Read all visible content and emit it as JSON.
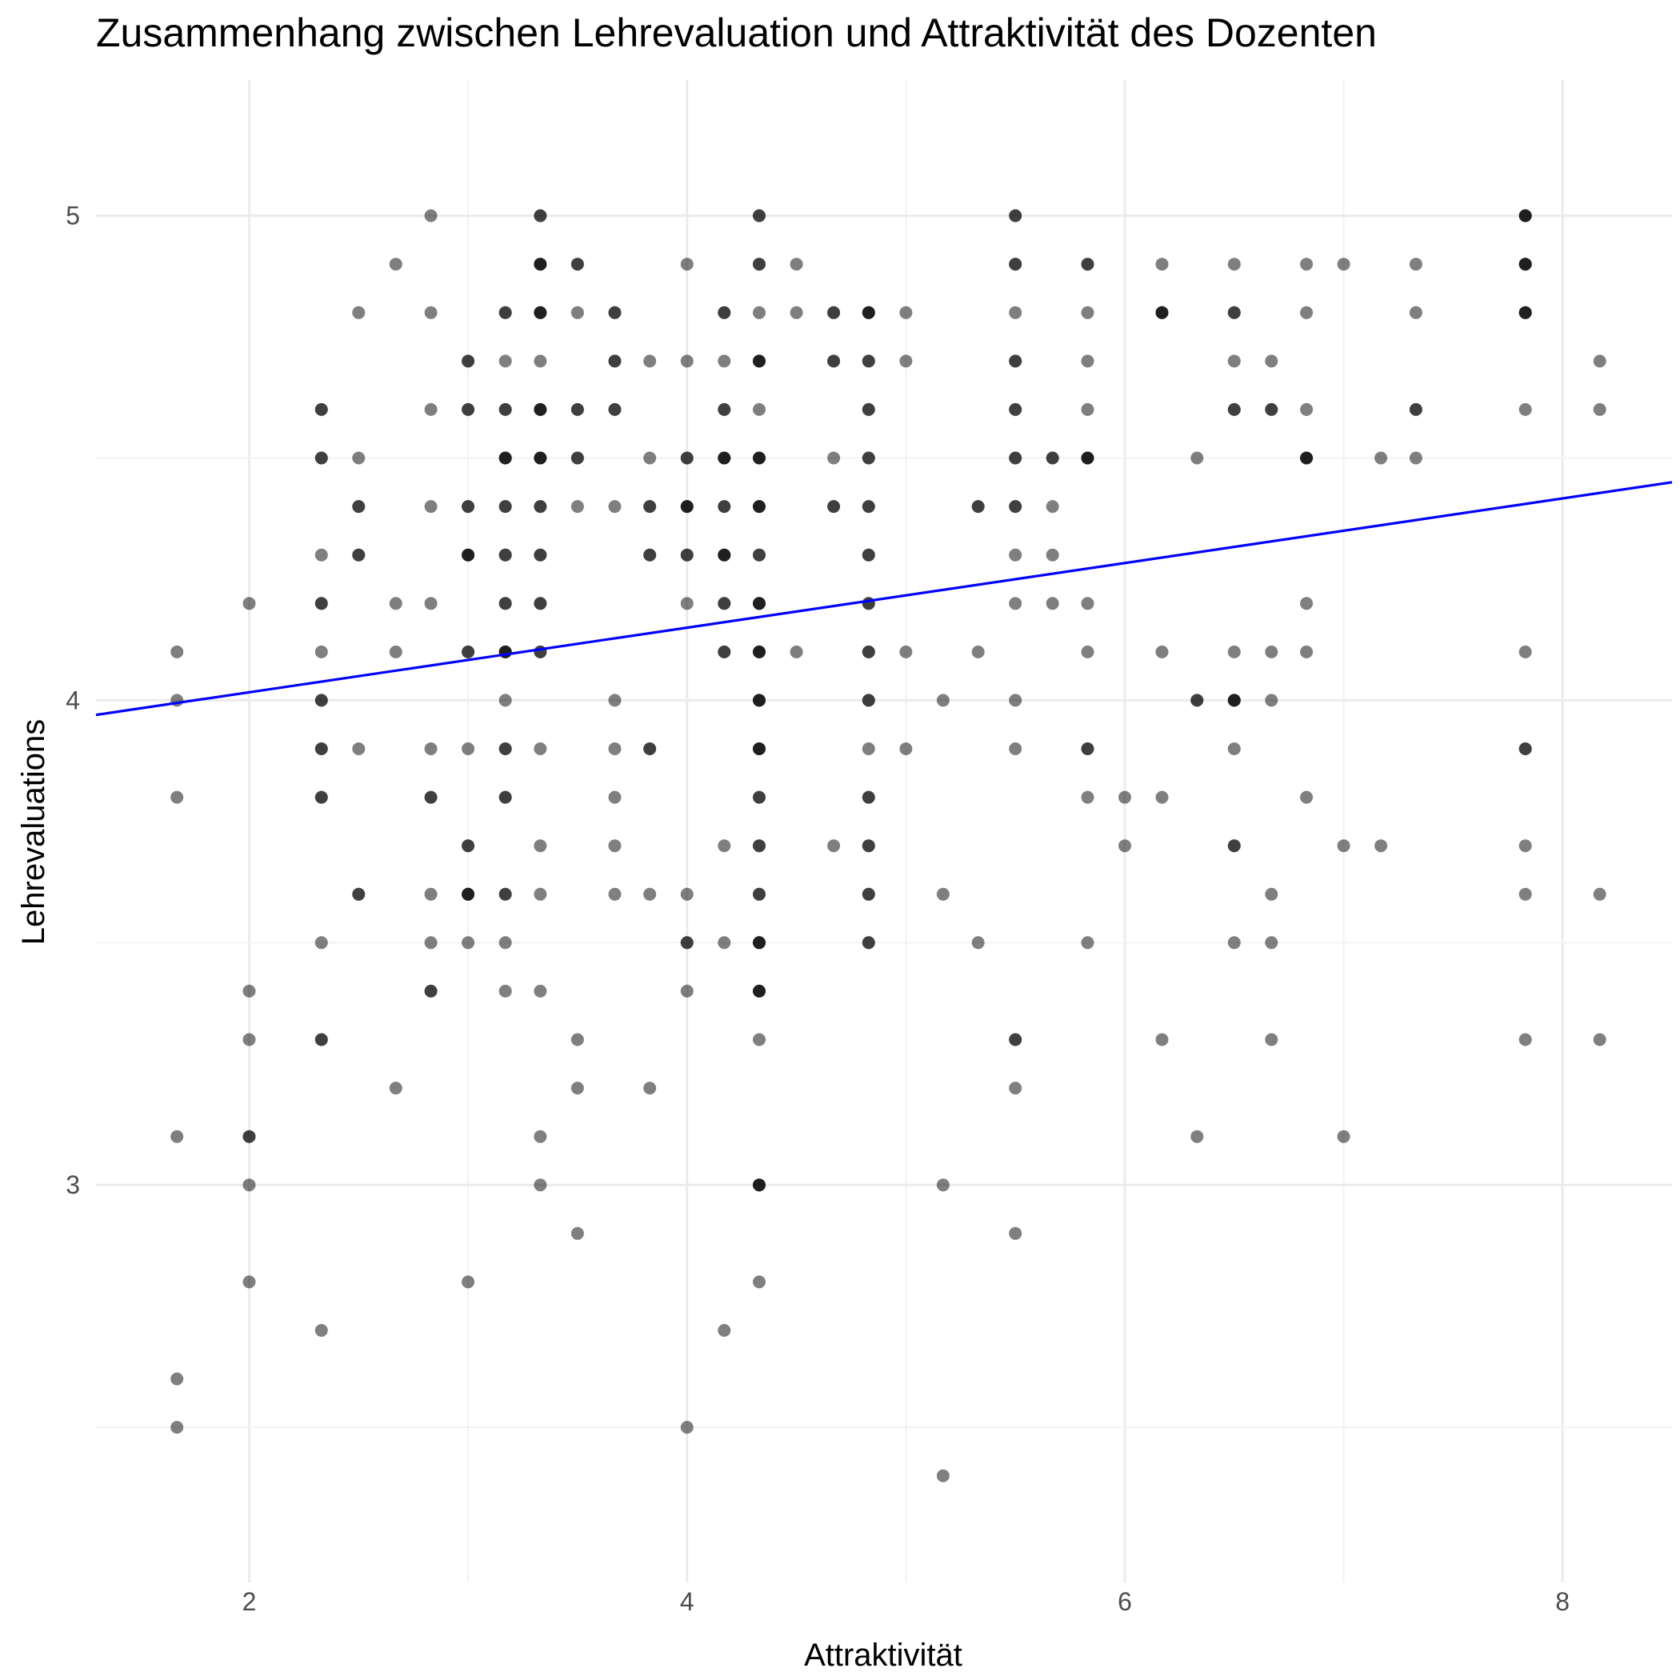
{
  "chart_data": {
    "type": "scatter",
    "title": "Zusammenhang zwischen Lehrevaluation und Attraktivität des Dozenten",
    "xlabel": "Attraktivität",
    "ylabel": "Lehrevaluations",
    "xlim": [
      1.3,
      8.5
    ],
    "ylim": [
      2.18,
      5.28
    ],
    "x_ticks": [
      2,
      4,
      6,
      8
    ],
    "y_ticks": [
      3,
      4,
      5
    ],
    "grid": true,
    "point_color": "#000000",
    "point_opacity": 0.5,
    "line_color": "#0000ff",
    "regression_line": {
      "x": [
        1.3,
        8.5
      ],
      "y": [
        3.97,
        4.45
      ]
    },
    "points": [
      [
        1.67,
        4.1
      ],
      [
        1.67,
        4.0
      ],
      [
        1.67,
        3.8
      ],
      [
        1.67,
        3.1
      ],
      [
        1.67,
        2.6
      ],
      [
        1.67,
        2.5
      ],
      [
        2.0,
        4.2
      ],
      [
        2.0,
        3.4
      ],
      [
        2.0,
        3.3
      ],
      [
        2.0,
        3.1
      ],
      [
        2.0,
        3.1
      ],
      [
        2.0,
        3.0
      ],
      [
        2.0,
        2.8
      ],
      [
        2.33,
        4.6
      ],
      [
        2.33,
        4.6
      ],
      [
        2.33,
        4.5
      ],
      [
        2.33,
        4.5
      ],
      [
        2.33,
        4.3
      ],
      [
        2.33,
        4.2
      ],
      [
        2.33,
        4.2
      ],
      [
        2.33,
        4.1
      ],
      [
        2.33,
        4.0
      ],
      [
        2.33,
        4.0
      ],
      [
        2.33,
        3.9
      ],
      [
        2.33,
        3.9
      ],
      [
        2.33,
        3.8
      ],
      [
        2.33,
        3.8
      ],
      [
        2.33,
        3.5
      ],
      [
        2.33,
        3.3
      ],
      [
        2.33,
        3.3
      ],
      [
        2.33,
        2.7
      ],
      [
        2.5,
        4.8
      ],
      [
        2.5,
        4.5
      ],
      [
        2.5,
        4.4
      ],
      [
        2.5,
        4.4
      ],
      [
        2.5,
        4.3
      ],
      [
        2.5,
        4.3
      ],
      [
        2.5,
        3.9
      ],
      [
        2.5,
        3.6
      ],
      [
        2.5,
        3.6
      ],
      [
        2.67,
        4.9
      ],
      [
        2.67,
        4.2
      ],
      [
        2.67,
        4.1
      ],
      [
        2.67,
        3.2
      ],
      [
        2.83,
        5.0
      ],
      [
        2.83,
        4.8
      ],
      [
        2.83,
        4.6
      ],
      [
        2.83,
        4.4
      ],
      [
        2.83,
        4.2
      ],
      [
        2.83,
        3.9
      ],
      [
        2.83,
        3.8
      ],
      [
        2.83,
        3.8
      ],
      [
        2.83,
        3.6
      ],
      [
        2.83,
        3.5
      ],
      [
        2.83,
        3.4
      ],
      [
        2.83,
        3.4
      ],
      [
        3.0,
        4.7
      ],
      [
        3.0,
        4.7
      ],
      [
        3.0,
        4.6
      ],
      [
        3.0,
        4.6
      ],
      [
        3.0,
        4.4
      ],
      [
        3.0,
        4.4
      ],
      [
        3.0,
        4.3
      ],
      [
        3.0,
        4.3
      ],
      [
        3.0,
        4.3
      ],
      [
        3.0,
        4.1
      ],
      [
        3.0,
        4.1
      ],
      [
        3.0,
        3.9
      ],
      [
        3.0,
        3.7
      ],
      [
        3.0,
        3.7
      ],
      [
        3.0,
        3.6
      ],
      [
        3.0,
        3.6
      ],
      [
        3.0,
        3.6
      ],
      [
        3.0,
        3.5
      ],
      [
        3.0,
        2.8
      ],
      [
        3.17,
        4.8
      ],
      [
        3.17,
        4.8
      ],
      [
        3.17,
        4.7
      ],
      [
        3.17,
        4.6
      ],
      [
        3.17,
        4.6
      ],
      [
        3.17,
        4.5
      ],
      [
        3.17,
        4.5
      ],
      [
        3.17,
        4.5
      ],
      [
        3.17,
        4.4
      ],
      [
        3.17,
        4.4
      ],
      [
        3.17,
        4.3
      ],
      [
        3.17,
        4.3
      ],
      [
        3.17,
        4.2
      ],
      [
        3.17,
        4.2
      ],
      [
        3.17,
        4.1
      ],
      [
        3.17,
        4.1
      ],
      [
        3.17,
        4.1
      ],
      [
        3.17,
        4.0
      ],
      [
        3.17,
        3.9
      ],
      [
        3.17,
        3.9
      ],
      [
        3.17,
        3.8
      ],
      [
        3.17,
        3.8
      ],
      [
        3.17,
        3.6
      ],
      [
        3.17,
        3.6
      ],
      [
        3.17,
        3.5
      ],
      [
        3.17,
        3.4
      ],
      [
        3.33,
        5.0
      ],
      [
        3.33,
        5.0
      ],
      [
        3.33,
        4.9
      ],
      [
        3.33,
        4.9
      ],
      [
        3.33,
        4.9
      ],
      [
        3.33,
        4.8
      ],
      [
        3.33,
        4.8
      ],
      [
        3.33,
        4.8
      ],
      [
        3.33,
        4.7
      ],
      [
        3.33,
        4.6
      ],
      [
        3.33,
        4.6
      ],
      [
        3.33,
        4.6
      ],
      [
        3.33,
        4.5
      ],
      [
        3.33,
        4.5
      ],
      [
        3.33,
        4.5
      ],
      [
        3.33,
        4.4
      ],
      [
        3.33,
        4.4
      ],
      [
        3.33,
        4.3
      ],
      [
        3.33,
        4.3
      ],
      [
        3.33,
        4.2
      ],
      [
        3.33,
        4.2
      ],
      [
        3.33,
        4.1
      ],
      [
        3.33,
        4.1
      ],
      [
        3.33,
        3.9
      ],
      [
        3.33,
        3.7
      ],
      [
        3.33,
        3.6
      ],
      [
        3.33,
        3.4
      ],
      [
        3.33,
        3.1
      ],
      [
        3.33,
        3.0
      ],
      [
        3.5,
        4.9
      ],
      [
        3.5,
        4.9
      ],
      [
        3.5,
        4.8
      ],
      [
        3.5,
        4.6
      ],
      [
        3.5,
        4.6
      ],
      [
        3.5,
        4.5
      ],
      [
        3.5,
        4.5
      ],
      [
        3.5,
        4.4
      ],
      [
        3.5,
        3.3
      ],
      [
        3.5,
        3.2
      ],
      [
        3.5,
        2.9
      ],
      [
        3.67,
        4.8
      ],
      [
        3.67,
        4.8
      ],
      [
        3.67,
        4.7
      ],
      [
        3.67,
        4.7
      ],
      [
        3.67,
        4.6
      ],
      [
        3.67,
        4.6
      ],
      [
        3.67,
        4.4
      ],
      [
        3.67,
        4.0
      ],
      [
        3.67,
        3.9
      ],
      [
        3.67,
        3.8
      ],
      [
        3.67,
        3.7
      ],
      [
        3.67,
        3.6
      ],
      [
        3.83,
        4.7
      ],
      [
        3.83,
        4.5
      ],
      [
        3.83,
        4.4
      ],
      [
        3.83,
        4.4
      ],
      [
        3.83,
        4.3
      ],
      [
        3.83,
        4.3
      ],
      [
        3.83,
        3.9
      ],
      [
        3.83,
        3.9
      ],
      [
        3.83,
        3.6
      ],
      [
        3.83,
        3.2
      ],
      [
        4.0,
        4.9
      ],
      [
        4.0,
        4.7
      ],
      [
        4.0,
        4.5
      ],
      [
        4.0,
        4.5
      ],
      [
        4.0,
        4.4
      ],
      [
        4.0,
        4.4
      ],
      [
        4.0,
        4.4
      ],
      [
        4.0,
        4.3
      ],
      [
        4.0,
        4.3
      ],
      [
        4.0,
        4.2
      ],
      [
        4.0,
        3.6
      ],
      [
        4.0,
        3.5
      ],
      [
        4.0,
        3.5
      ],
      [
        4.0,
        3.4
      ],
      [
        4.0,
        2.5
      ],
      [
        4.17,
        4.8
      ],
      [
        4.17,
        4.8
      ],
      [
        4.17,
        4.7
      ],
      [
        4.17,
        4.6
      ],
      [
        4.17,
        4.6
      ],
      [
        4.17,
        4.5
      ],
      [
        4.17,
        4.5
      ],
      [
        4.17,
        4.5
      ],
      [
        4.17,
        4.4
      ],
      [
        4.17,
        4.4
      ],
      [
        4.17,
        4.3
      ],
      [
        4.17,
        4.3
      ],
      [
        4.17,
        4.3
      ],
      [
        4.17,
        4.2
      ],
      [
        4.17,
        4.2
      ],
      [
        4.17,
        4.1
      ],
      [
        4.17,
        4.1
      ],
      [
        4.17,
        3.7
      ],
      [
        4.17,
        3.5
      ],
      [
        4.17,
        2.7
      ],
      [
        4.33,
        5.0
      ],
      [
        4.33,
        5.0
      ],
      [
        4.33,
        4.9
      ],
      [
        4.33,
        4.9
      ],
      [
        4.33,
        4.8
      ],
      [
        4.33,
        4.7
      ],
      [
        4.33,
        4.7
      ],
      [
        4.33,
        4.7
      ],
      [
        4.33,
        4.6
      ],
      [
        4.33,
        4.5
      ],
      [
        4.33,
        4.5
      ],
      [
        4.33,
        4.5
      ],
      [
        4.33,
        4.4
      ],
      [
        4.33,
        4.4
      ],
      [
        4.33,
        4.4
      ],
      [
        4.33,
        4.3
      ],
      [
        4.33,
        4.3
      ],
      [
        4.33,
        4.2
      ],
      [
        4.33,
        4.2
      ],
      [
        4.33,
        4.2
      ],
      [
        4.33,
        4.1
      ],
      [
        4.33,
        4.1
      ],
      [
        4.33,
        4.1
      ],
      [
        4.33,
        4.0
      ],
      [
        4.33,
        4.0
      ],
      [
        4.33,
        4.0
      ],
      [
        4.33,
        3.9
      ],
      [
        4.33,
        3.9
      ],
      [
        4.33,
        3.9
      ],
      [
        4.33,
        3.8
      ],
      [
        4.33,
        3.8
      ],
      [
        4.33,
        3.7
      ],
      [
        4.33,
        3.7
      ],
      [
        4.33,
        3.6
      ],
      [
        4.33,
        3.6
      ],
      [
        4.33,
        3.5
      ],
      [
        4.33,
        3.5
      ],
      [
        4.33,
        3.5
      ],
      [
        4.33,
        3.4
      ],
      [
        4.33,
        3.4
      ],
      [
        4.33,
        3.4
      ],
      [
        4.33,
        3.3
      ],
      [
        4.33,
        3.0
      ],
      [
        4.33,
        3.0
      ],
      [
        4.33,
        3.0
      ],
      [
        4.33,
        2.8
      ],
      [
        4.5,
        4.9
      ],
      [
        4.5,
        4.8
      ],
      [
        4.5,
        4.1
      ],
      [
        4.67,
        4.8
      ],
      [
        4.67,
        4.8
      ],
      [
        4.67,
        4.7
      ],
      [
        4.67,
        4.7
      ],
      [
        4.67,
        4.5
      ],
      [
        4.67,
        4.4
      ],
      [
        4.67,
        4.4
      ],
      [
        4.67,
        3.7
      ],
      [
        4.83,
        4.8
      ],
      [
        4.83,
        4.8
      ],
      [
        4.83,
        4.8
      ],
      [
        4.83,
        4.7
      ],
      [
        4.83,
        4.7
      ],
      [
        4.83,
        4.6
      ],
      [
        4.83,
        4.6
      ],
      [
        4.83,
        4.5
      ],
      [
        4.83,
        4.5
      ],
      [
        4.83,
        4.4
      ],
      [
        4.83,
        4.4
      ],
      [
        4.83,
        4.3
      ],
      [
        4.83,
        4.3
      ],
      [
        4.83,
        4.2
      ],
      [
        4.83,
        4.2
      ],
      [
        4.83,
        4.1
      ],
      [
        4.83,
        4.1
      ],
      [
        4.83,
        4.0
      ],
      [
        4.83,
        4.0
      ],
      [
        4.83,
        3.9
      ],
      [
        4.83,
        3.8
      ],
      [
        4.83,
        3.8
      ],
      [
        4.83,
        3.7
      ],
      [
        4.83,
        3.7
      ],
      [
        4.83,
        3.6
      ],
      [
        4.83,
        3.6
      ],
      [
        4.83,
        3.5
      ],
      [
        4.83,
        3.5
      ],
      [
        5.0,
        4.8
      ],
      [
        5.0,
        4.7
      ],
      [
        5.0,
        4.1
      ],
      [
        5.0,
        3.9
      ],
      [
        5.17,
        4.0
      ],
      [
        5.17,
        3.6
      ],
      [
        5.17,
        3.0
      ],
      [
        5.17,
        2.4
      ],
      [
        5.33,
        4.4
      ],
      [
        5.33,
        4.4
      ],
      [
        5.33,
        4.1
      ],
      [
        5.33,
        3.5
      ],
      [
        5.5,
        5.0
      ],
      [
        5.5,
        5.0
      ],
      [
        5.5,
        4.9
      ],
      [
        5.5,
        4.9
      ],
      [
        5.5,
        4.8
      ],
      [
        5.5,
        4.7
      ],
      [
        5.5,
        4.7
      ],
      [
        5.5,
        4.6
      ],
      [
        5.5,
        4.6
      ],
      [
        5.5,
        4.5
      ],
      [
        5.5,
        4.5
      ],
      [
        5.5,
        4.4
      ],
      [
        5.5,
        4.4
      ],
      [
        5.5,
        4.3
      ],
      [
        5.5,
        4.2
      ],
      [
        5.5,
        4.0
      ],
      [
        5.5,
        3.9
      ],
      [
        5.5,
        3.3
      ],
      [
        5.5,
        3.3
      ],
      [
        5.5,
        3.2
      ],
      [
        5.5,
        2.9
      ],
      [
        5.67,
        4.5
      ],
      [
        5.67,
        4.5
      ],
      [
        5.67,
        4.4
      ],
      [
        5.67,
        4.3
      ],
      [
        5.67,
        4.2
      ],
      [
        5.83,
        4.9
      ],
      [
        5.83,
        4.9
      ],
      [
        5.83,
        4.8
      ],
      [
        5.83,
        4.7
      ],
      [
        5.83,
        4.6
      ],
      [
        5.83,
        4.5
      ],
      [
        5.83,
        4.5
      ],
      [
        5.83,
        4.5
      ],
      [
        5.83,
        4.2
      ],
      [
        5.83,
        4.1
      ],
      [
        5.83,
        3.9
      ],
      [
        5.83,
        3.9
      ],
      [
        5.83,
        3.8
      ],
      [
        5.83,
        3.5
      ],
      [
        6.0,
        3.8
      ],
      [
        6.0,
        3.7
      ],
      [
        6.17,
        4.9
      ],
      [
        6.17,
        4.8
      ],
      [
        6.17,
        4.8
      ],
      [
        6.17,
        4.8
      ],
      [
        6.17,
        4.1
      ],
      [
        6.17,
        3.8
      ],
      [
        6.17,
        3.3
      ],
      [
        6.33,
        4.5
      ],
      [
        6.33,
        4.0
      ],
      [
        6.33,
        4.0
      ],
      [
        6.33,
        3.1
      ],
      [
        6.5,
        4.9
      ],
      [
        6.5,
        4.8
      ],
      [
        6.5,
        4.8
      ],
      [
        6.5,
        4.7
      ],
      [
        6.5,
        4.6
      ],
      [
        6.5,
        4.6
      ],
      [
        6.5,
        4.1
      ],
      [
        6.5,
        4.0
      ],
      [
        6.5,
        4.0
      ],
      [
        6.5,
        4.0
      ],
      [
        6.5,
        3.9
      ],
      [
        6.5,
        3.7
      ],
      [
        6.5,
        3.7
      ],
      [
        6.5,
        3.5
      ],
      [
        6.67,
        4.7
      ],
      [
        6.67,
        4.6
      ],
      [
        6.67,
        4.6
      ],
      [
        6.67,
        4.1
      ],
      [
        6.67,
        4.0
      ],
      [
        6.67,
        3.6
      ],
      [
        6.67,
        3.5
      ],
      [
        6.67,
        3.3
      ],
      [
        6.83,
        4.9
      ],
      [
        6.83,
        4.8
      ],
      [
        6.83,
        4.6
      ],
      [
        6.83,
        4.5
      ],
      [
        6.83,
        4.5
      ],
      [
        6.83,
        4.5
      ],
      [
        6.83,
        4.2
      ],
      [
        6.83,
        4.1
      ],
      [
        6.83,
        3.8
      ],
      [
        7.0,
        4.9
      ],
      [
        7.0,
        3.7
      ],
      [
        7.0,
        3.1
      ],
      [
        7.17,
        4.5
      ],
      [
        7.17,
        3.7
      ],
      [
        7.33,
        4.9
      ],
      [
        7.33,
        4.8
      ],
      [
        7.33,
        4.6
      ],
      [
        7.33,
        4.6
      ],
      [
        7.33,
        4.5
      ],
      [
        7.83,
        5.0
      ],
      [
        7.83,
        5.0
      ],
      [
        7.83,
        5.0
      ],
      [
        7.83,
        4.9
      ],
      [
        7.83,
        4.9
      ],
      [
        7.83,
        4.9
      ],
      [
        7.83,
        4.8
      ],
      [
        7.83,
        4.8
      ],
      [
        7.83,
        4.8
      ],
      [
        7.83,
        4.6
      ],
      [
        7.83,
        4.1
      ],
      [
        7.83,
        3.9
      ],
      [
        7.83,
        3.9
      ],
      [
        7.83,
        3.7
      ],
      [
        7.83,
        3.6
      ],
      [
        7.83,
        3.3
      ],
      [
        8.17,
        4.7
      ],
      [
        8.17,
        4.6
      ],
      [
        8.17,
        3.6
      ],
      [
        8.17,
        3.3
      ]
    ]
  }
}
